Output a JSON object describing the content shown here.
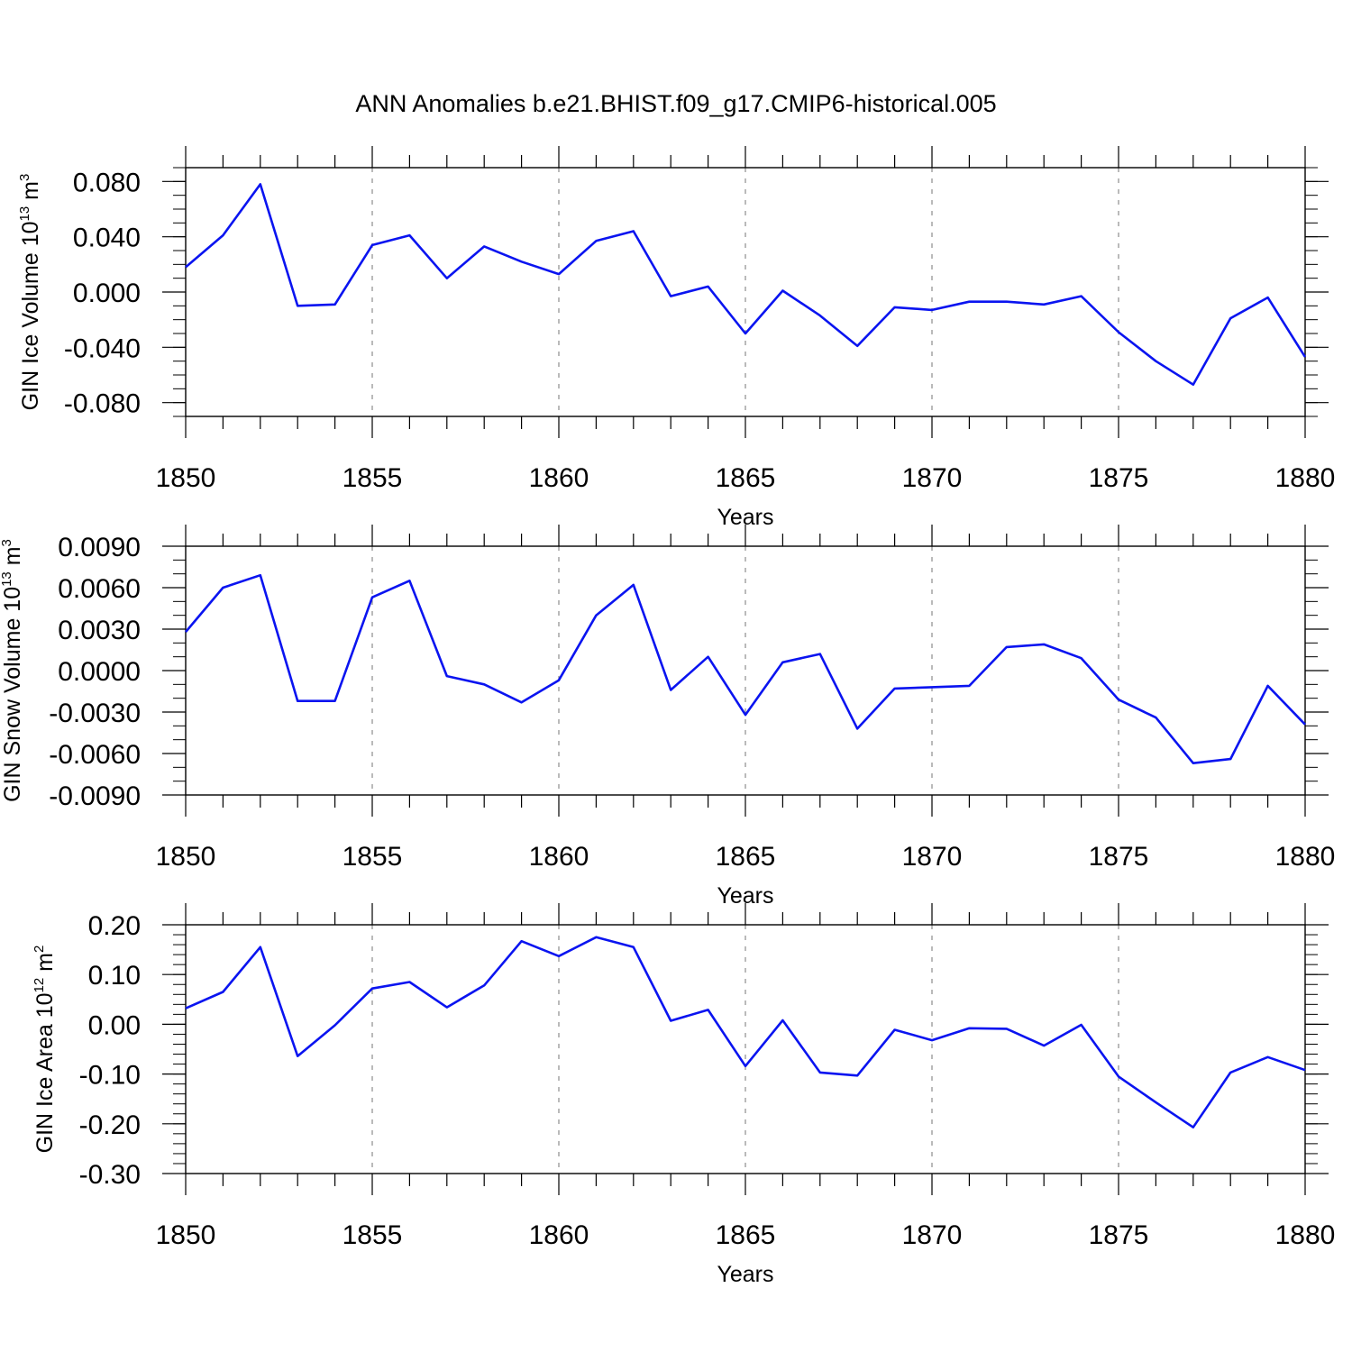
{
  "title": "ANN Anomalies b.e21.BHIST.f09_g17.CMIP6-historical.005",
  "colors": {
    "line": "#0a14f0",
    "axis": "#000000",
    "grid": "#8c8c8c"
  },
  "chart_data": [
    {
      "type": "line",
      "ylabel_main": "GIN Ice Volume 10",
      "ylabel_exp": "13",
      "ylabel_unit": "m",
      "ylabel_unit_exp": "3",
      "xlabel": "Years",
      "xlim": [
        1850,
        1880
      ],
      "ylim": [
        -0.09,
        0.09
      ],
      "x_ticks": [
        "1850",
        "1855",
        "1860",
        "1865",
        "1870",
        "1875",
        "1880"
      ],
      "y_ticks": [
        "0.080",
        "0.040",
        "0.000",
        "-0.040",
        "-0.080"
      ],
      "y_tick_values": [
        0.08,
        0.04,
        0.0,
        -0.04,
        -0.08
      ],
      "y_minor_step": 0.01,
      "vertical_grid": "dashed, every 5 years",
      "x": [
        1850,
        1851,
        1852,
        1853,
        1854,
        1855,
        1856,
        1857,
        1858,
        1859,
        1860,
        1861,
        1862,
        1863,
        1864,
        1865,
        1866,
        1867,
        1868,
        1869,
        1870,
        1871,
        1872,
        1873,
        1874,
        1875,
        1876,
        1877,
        1878,
        1879,
        1880
      ],
      "values": [
        0.018,
        0.041,
        0.078,
        -0.01,
        -0.009,
        0.034,
        0.041,
        0.01,
        0.033,
        0.022,
        0.013,
        0.037,
        0.044,
        -0.003,
        0.004,
        -0.03,
        0.001,
        -0.017,
        -0.039,
        -0.011,
        -0.013,
        -0.007,
        -0.007,
        -0.009,
        -0.003,
        -0.029,
        -0.05,
        -0.067,
        -0.019,
        -0.004,
        -0.047
      ]
    },
    {
      "type": "line",
      "ylabel_main": "GIN Snow Volume 10",
      "ylabel_exp": "13",
      "ylabel_unit": "m",
      "ylabel_unit_exp": "3",
      "xlabel": "Years",
      "xlim": [
        1850,
        1880
      ],
      "ylim": [
        -0.009,
        0.009
      ],
      "x_ticks": [
        "1850",
        "1855",
        "1860",
        "1865",
        "1870",
        "1875",
        "1880"
      ],
      "y_ticks": [
        "0.0090",
        "0.0060",
        "0.0030",
        "0.0000",
        "-0.0030",
        "-0.0060",
        "-0.0090"
      ],
      "y_tick_values": [
        0.009,
        0.006,
        0.003,
        0.0,
        -0.003,
        -0.006,
        -0.009
      ],
      "y_minor_step": 0.001,
      "vertical_grid": "dashed, every 5 years",
      "x": [
        1850,
        1851,
        1852,
        1853,
        1854,
        1855,
        1856,
        1857,
        1858,
        1859,
        1860,
        1861,
        1862,
        1863,
        1864,
        1865,
        1866,
        1867,
        1868,
        1869,
        1870,
        1871,
        1872,
        1873,
        1874,
        1875,
        1876,
        1877,
        1878,
        1879,
        1880
      ],
      "values": [
        0.0028,
        0.006,
        0.0069,
        -0.0022,
        -0.0022,
        0.0053,
        0.0065,
        -0.0004,
        -0.001,
        -0.0023,
        -0.0007,
        0.004,
        0.0062,
        -0.0014,
        0.001,
        -0.0032,
        0.0006,
        0.0012,
        -0.0042,
        -0.0013,
        -0.0012,
        -0.0011,
        0.0017,
        0.0019,
        0.0009,
        -0.0021,
        -0.0034,
        -0.0067,
        -0.0064,
        -0.0011,
        -0.0039
      ]
    },
    {
      "type": "line",
      "ylabel_main": "GIN Ice Area 10",
      "ylabel_exp": "12",
      "ylabel_unit": "m",
      "ylabel_unit_exp": "2",
      "xlabel": "Years",
      "xlim": [
        1850,
        1880
      ],
      "ylim": [
        -0.3,
        0.2
      ],
      "x_ticks": [
        "1850",
        "1855",
        "1860",
        "1865",
        "1870",
        "1875",
        "1880"
      ],
      "y_ticks": [
        "0.20",
        "0.10",
        "0.00",
        "-0.10",
        "-0.20",
        "-0.30"
      ],
      "y_tick_values": [
        0.2,
        0.1,
        0.0,
        -0.1,
        -0.2,
        -0.3
      ],
      "y_minor_step": 0.02,
      "vertical_grid": "dashed, every 5 years",
      "x": [
        1850,
        1851,
        1852,
        1853,
        1854,
        1855,
        1856,
        1857,
        1858,
        1859,
        1860,
        1861,
        1862,
        1863,
        1864,
        1865,
        1866,
        1867,
        1868,
        1869,
        1870,
        1871,
        1872,
        1873,
        1874,
        1875,
        1876,
        1877,
        1878,
        1879,
        1880
      ],
      "values": [
        0.032,
        0.065,
        0.155,
        -0.064,
        -0.002,
        0.072,
        0.085,
        0.034,
        0.078,
        0.167,
        0.137,
        0.175,
        0.155,
        0.007,
        0.029,
        -0.084,
        0.008,
        -0.097,
        -0.103,
        -0.011,
        -0.032,
        -0.008,
        -0.009,
        -0.043,
        -0.001,
        -0.105,
        -0.157,
        -0.207,
        -0.097,
        -0.066,
        -0.092
      ]
    }
  ]
}
